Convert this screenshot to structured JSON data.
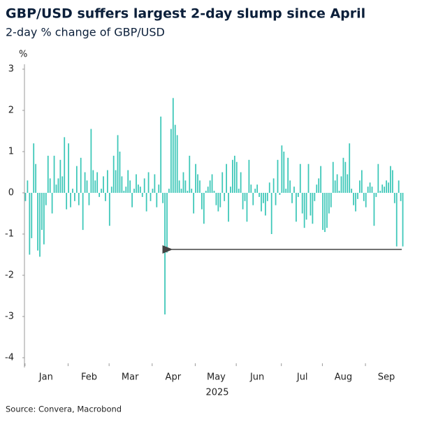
{
  "chart_data": {
    "type": "bar",
    "title": "GBP/USD suffers largest 2-day slump since April",
    "subtitle": "2-day % change of GBP/USD",
    "y_label": "%",
    "x_label": "2025",
    "source": "Source: Convera, Macrobond",
    "color": "#3cc7b8",
    "ylim": [
      -4,
      3
    ],
    "yticks": [
      -4,
      -3,
      -2,
      -1,
      0,
      1,
      2,
      3
    ],
    "categories": [
      null,
      null,
      null,
      null,
      null,
      null,
      null,
      null,
      null,
      null,
      "Jan",
      null,
      null,
      null,
      null,
      null,
      null,
      null,
      null,
      null,
      null,
      null,
      null,
      null,
      null,
      null,
      null,
      null,
      null,
      null,
      null,
      "Feb",
      null,
      null,
      null,
      null,
      null,
      null,
      null,
      null,
      null,
      null,
      null,
      null,
      null,
      null,
      null,
      null,
      null,
      null,
      null,
      "Mar",
      null,
      null,
      null,
      null,
      null,
      null,
      null,
      null,
      null,
      null,
      null,
      null,
      null,
      null,
      null,
      null,
      null,
      null,
      null,
      null,
      "Apr",
      null,
      null,
      null,
      null,
      null,
      null,
      null,
      null,
      null,
      null,
      null,
      null,
      null,
      null,
      null,
      null,
      null,
      null,
      null,
      null,
      "May",
      null,
      null,
      null,
      null,
      null,
      null,
      null,
      null,
      null,
      null,
      null,
      null,
      null,
      null,
      null,
      null,
      null,
      null,
      null,
      "Jun",
      null,
      null,
      null,
      null,
      null,
      null,
      null,
      null,
      null,
      null,
      null,
      null,
      null,
      null,
      null,
      null,
      null,
      null,
      null,
      null,
      null,
      "Jul",
      null,
      null,
      null,
      null,
      null,
      null,
      null,
      null,
      null,
      null,
      null,
      null,
      null,
      null,
      null,
      null,
      null,
      null,
      null,
      "Aug",
      null,
      null,
      null,
      null,
      null,
      null,
      null,
      null,
      null,
      null,
      null,
      null,
      null,
      null,
      null,
      null,
      null,
      null,
      null,
      null,
      "Sep",
      null,
      null,
      null,
      null,
      null,
      null,
      null,
      null
    ],
    "values": [
      -0.2,
      0.3,
      -1.5,
      -1.1,
      1.2,
      0.7,
      -1.4,
      -1.55,
      -0.9,
      -1.25,
      -0.3,
      0.9,
      0.35,
      -0.5,
      0.9,
      0.2,
      0.35,
      0.8,
      0.4,
      1.35,
      -0.4,
      1.2,
      -0.35,
      0.1,
      -0.2,
      0.65,
      -0.3,
      0.85,
      -0.9,
      0.5,
      0.3,
      -0.3,
      1.55,
      0.55,
      0.3,
      0.5,
      -0.1,
      0.1,
      0.4,
      -0.2,
      0.55,
      -0.8,
      0.15,
      0.9,
      0.55,
      1.4,
      1.0,
      0.4,
      0.05,
      0.15,
      0.55,
      0.3,
      -0.35,
      0.1,
      0.45,
      0.2,
      0.15,
      -0.1,
      0.35,
      -0.45,
      0.5,
      -0.2,
      0.1,
      0.45,
      -0.35,
      0.2,
      1.85,
      -0.25,
      -2.95,
      -1.45,
      0.1,
      1.55,
      2.3,
      1.65,
      1.4,
      0.3,
      0.1,
      0.5,
      0.3,
      0.05,
      0.9,
      0.1,
      -0.5,
      0.7,
      0.45,
      0.3,
      -0.4,
      -0.75,
      0.05,
      0.15,
      0.3,
      0.45,
      0.05,
      -0.3,
      -0.45,
      -0.35,
      0.5,
      -0.2,
      0.7,
      -0.7,
      0.15,
      0.8,
      0.9,
      0.75,
      0.1,
      0.5,
      -0.4,
      -0.2,
      -0.7,
      0.8,
      0.2,
      -0.3,
      0.1,
      0.2,
      -0.1,
      -0.45,
      -0.25,
      -0.55,
      -0.2,
      0.25,
      -1.0,
      0.35,
      -0.3,
      0.8,
      -0.05,
      1.15,
      1.0,
      0.1,
      0.85,
      0.3,
      -0.25,
      0.15,
      -0.7,
      -0.1,
      0.7,
      -0.5,
      -0.85,
      -0.65,
      0.7,
      -0.55,
      -0.75,
      -0.2,
      0.2,
      0.35,
      0.65,
      -0.9,
      -0.95,
      -0.85,
      -0.5,
      -0.35,
      0.75,
      0.3,
      0.45,
      0.05,
      0.4,
      0.85,
      0.75,
      0.45,
      1.2,
      0.1,
      -0.3,
      -0.45,
      -0.15,
      0.3,
      0.55,
      -0.2,
      -0.35,
      0.15,
      0.25,
      0.15,
      -0.8,
      -0.1,
      0.7,
      0.05,
      0.2,
      0.15,
      0.3,
      0.25,
      0.65,
      0.55,
      -0.25,
      -1.3,
      0.3,
      -0.2,
      -1.3
    ]
  }
}
